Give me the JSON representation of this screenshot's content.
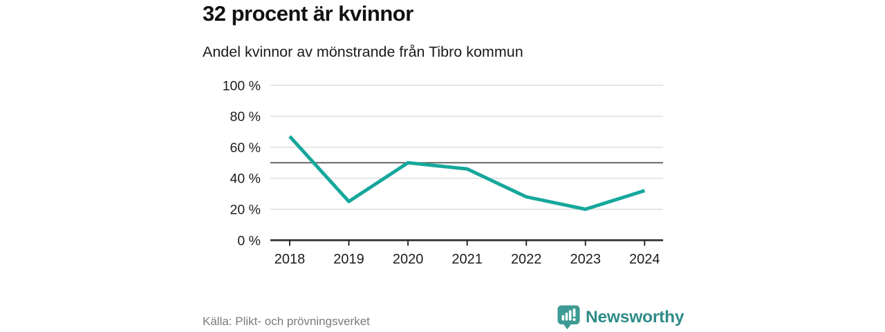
{
  "header": {
    "title": "32 procent är kvinnor",
    "subtitle": "Andel kvinnor av mönstrande från Tibro kommun"
  },
  "footer": {
    "source": "Källa: Plikt- och prövningsverket",
    "brand_name": "Newsworthy",
    "brand_icon": "newsworthy-pin-barchart-icon"
  },
  "colors": {
    "line": "#16a79c",
    "grid": "#dcdcdc",
    "reference_line": "#5a5a5a",
    "axis": "#2b2b2b",
    "tick_text": "#1c1c1c",
    "muted_text": "#7a7a7a",
    "brand_badge": "#3d9a94",
    "brand_text": "#2e8c88"
  },
  "chart_data": {
    "type": "line",
    "title": "32 procent är kvinnor",
    "subtitle": "Andel kvinnor av mönstrande från Tibro kommun",
    "categories": [
      "2018",
      "2019",
      "2020",
      "2021",
      "2022",
      "2023",
      "2024"
    ],
    "values": [
      67,
      25,
      50,
      46,
      28,
      20,
      32
    ],
    "unit": "%",
    "xlabel": "",
    "ylabel": "",
    "ylim": [
      0,
      100
    ],
    "yticks": [
      0,
      20,
      40,
      60,
      80,
      100
    ],
    "ytick_format": "{v} %",
    "reference_line": 50,
    "grid": "horizontal",
    "legend": "none",
    "source": "Källa: Plikt- och prövningsverket"
  }
}
